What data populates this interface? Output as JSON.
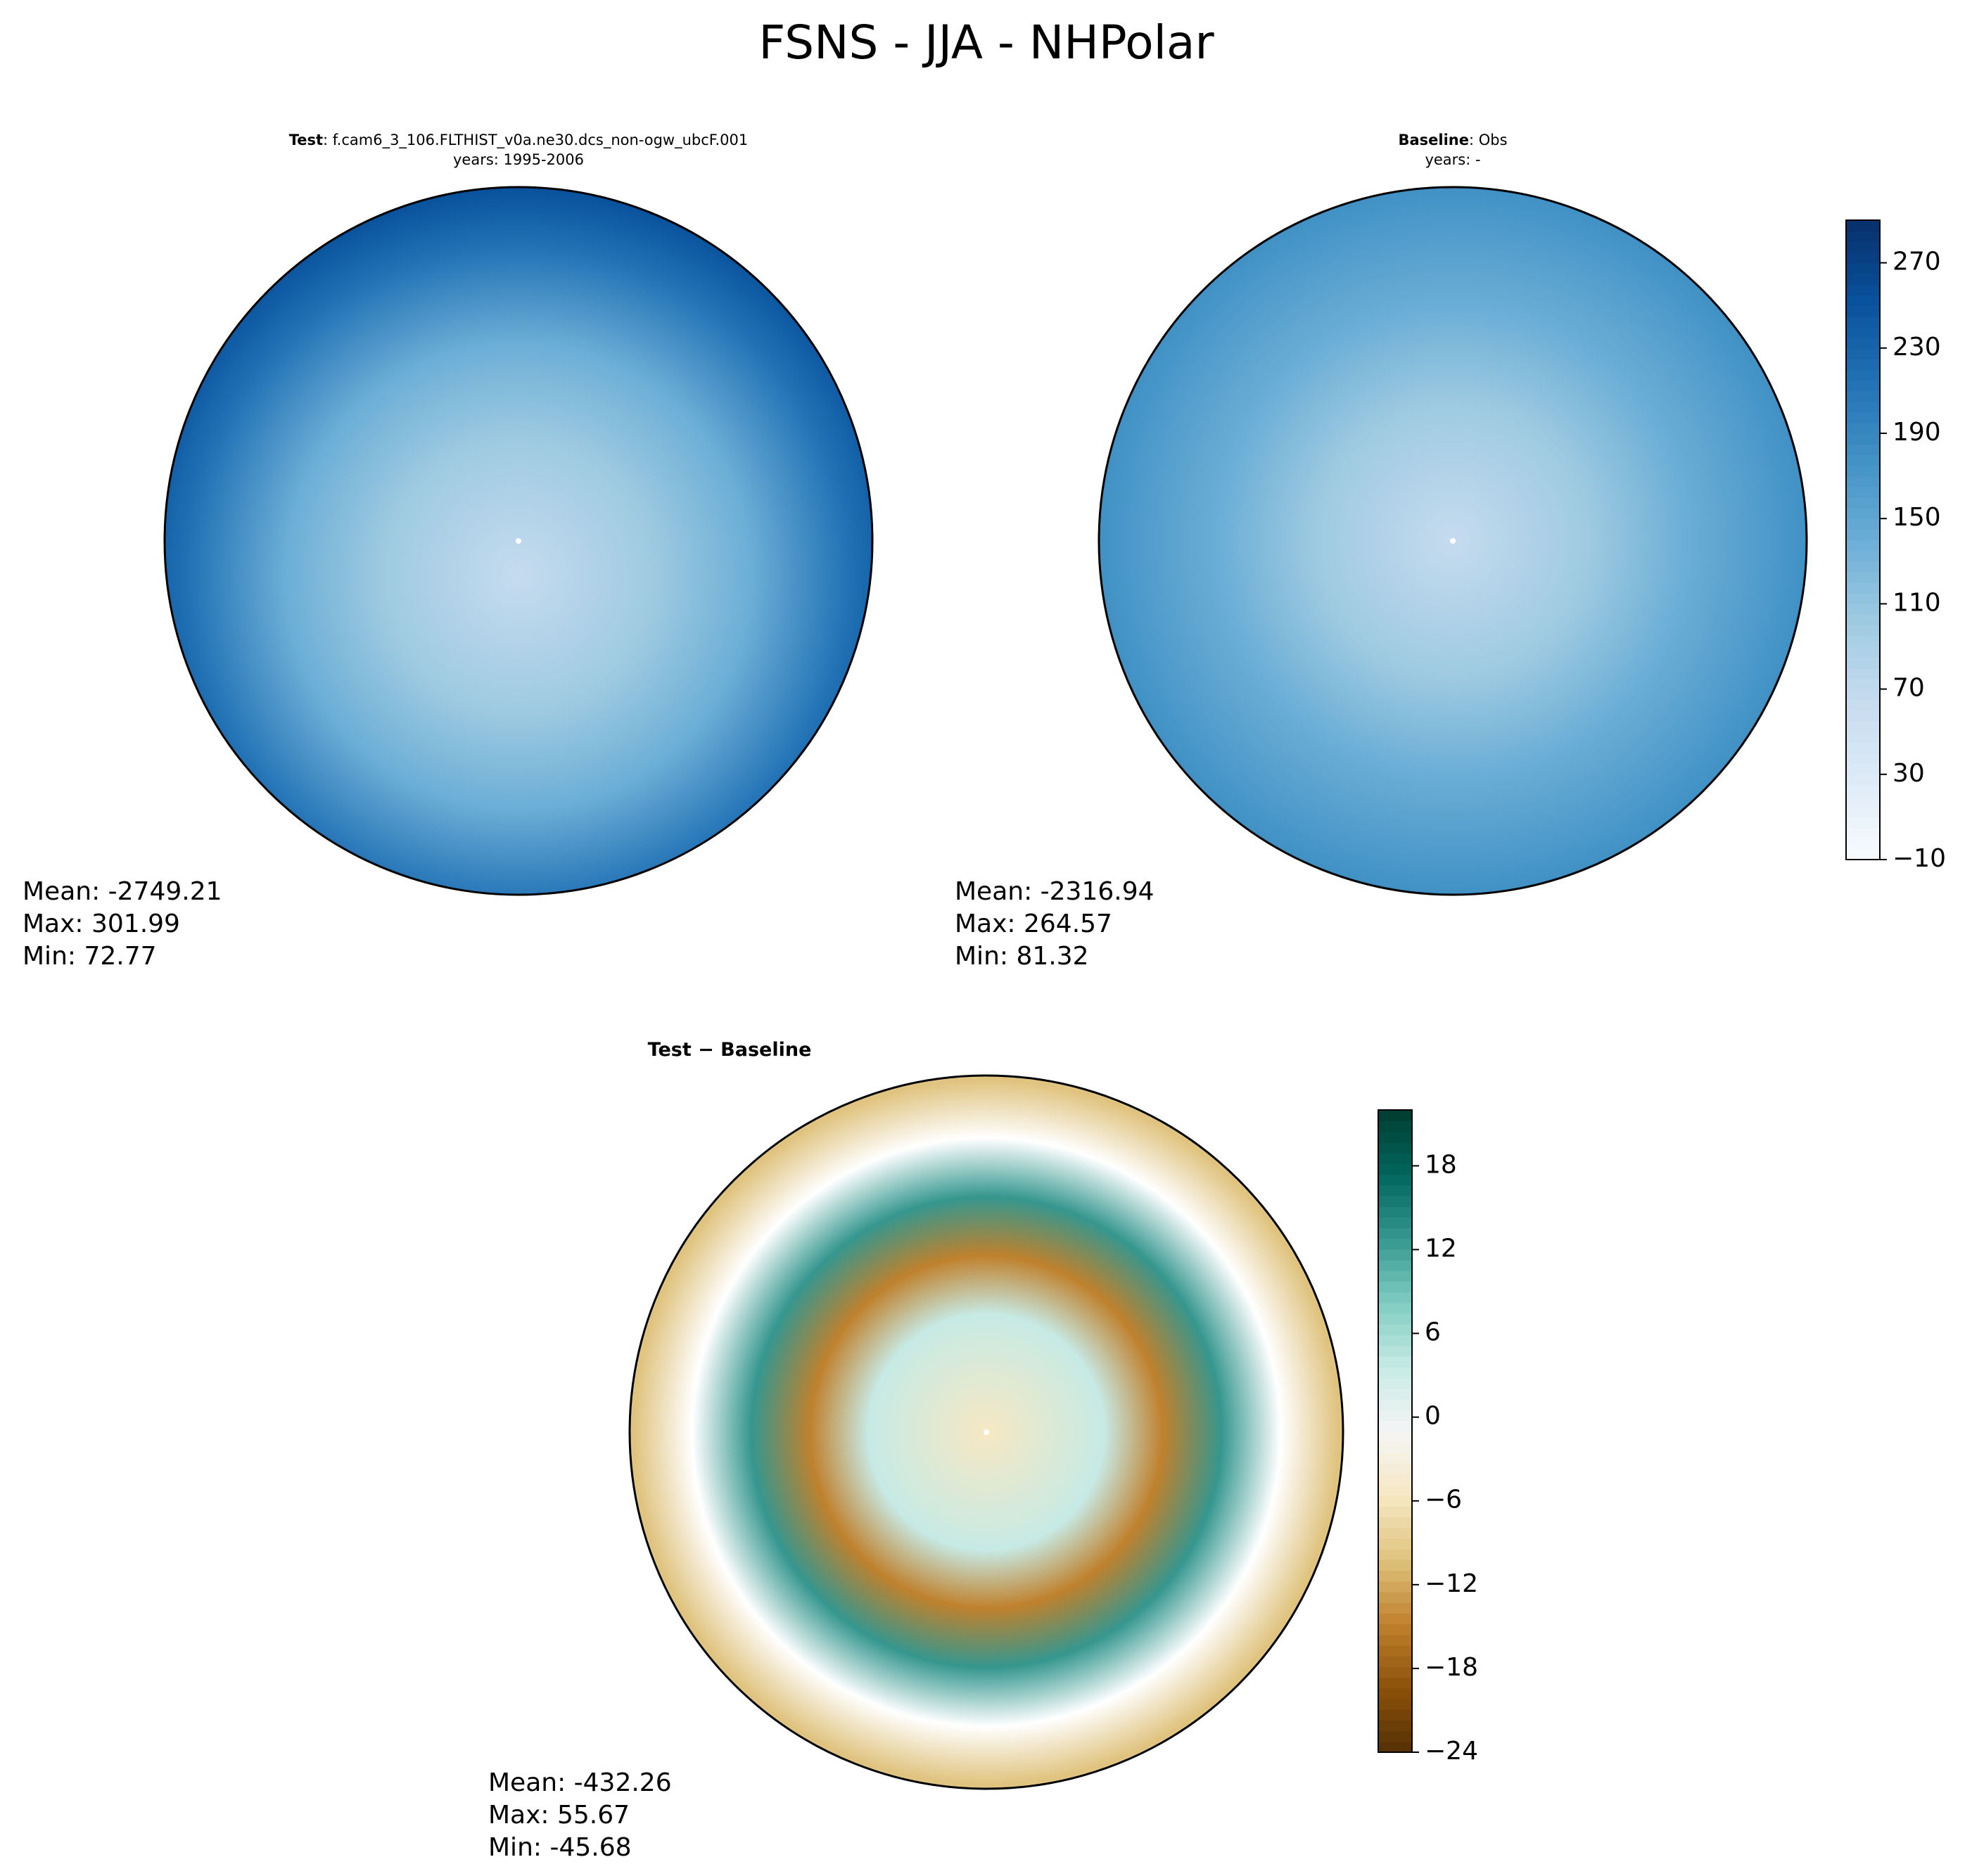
{
  "title": "FSNS - JJA - NHPolar",
  "chart_data": [
    {
      "type": "polar-map",
      "title_label": "Test",
      "title": ": f.cam6_3_106.FLTHIST_v0a.ne30.dcs_non-ogw_ubcF.001",
      "subtitle": "years: 1995-2006",
      "stats": [
        "Mean: -2749.21",
        "Max: 301.99",
        "Min: 72.77"
      ]
    },
    {
      "type": "polar-map",
      "title_label": "Baseline",
      "title": ": Obs",
      "subtitle": "years: -",
      "stats": [
        "Mean: -2316.94",
        "Max: 264.57",
        "Min: 81.32"
      ],
      "colorbar": {
        "cmap": "Blues",
        "lim": [
          -10,
          290
        ],
        "ticks": [
          {
            "value": -10,
            "label": "−10"
          },
          30,
          70,
          110,
          150,
          190,
          230,
          270
        ]
      }
    },
    {
      "type": "polar-map",
      "title_label": "Test − Baseline",
      "stats": [
        "Mean: -432.26",
        "Max: 55.67",
        "Min: -45.68"
      ],
      "colorbar": {
        "cmap": "BrBG",
        "lim": [
          -24,
          22
        ],
        "ticks": [
          {
            "value": -24,
            "label": "−24"
          },
          {
            "value": -18,
            "label": "−18"
          },
          {
            "value": -12,
            "label": "−12"
          },
          {
            "value": -6,
            "label": "−6"
          },
          0,
          6,
          12,
          18
        ]
      }
    }
  ]
}
